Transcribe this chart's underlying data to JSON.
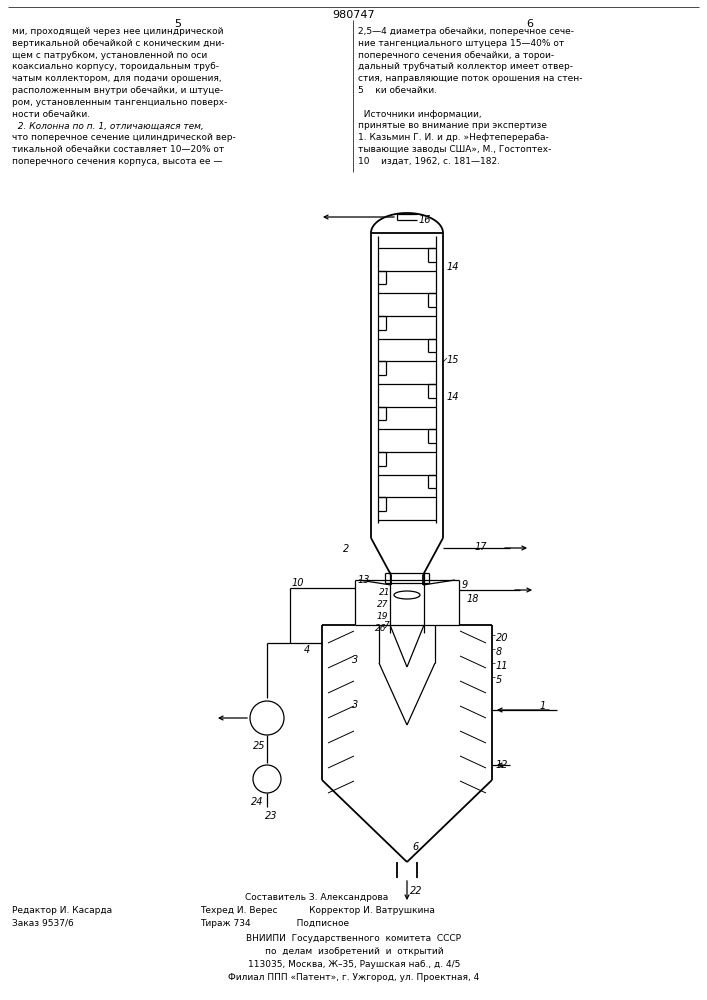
{
  "bg_color": "#ffffff",
  "lc": "#000000",
  "fig_width": 7.07,
  "fig_height": 10.0,
  "dpi": 100,
  "patent_num": "980747",
  "page_left": "5",
  "page_right": "6",
  "header_left": [
    "ми, проходящей через нее цилиндрической",
    "вертикальной обечайкой с коническим дни-",
    "щем с патрубком, установленной по оси",
    "коаксиально корпусу, тороидальным труб-",
    "чатым коллектором, для подачи орошения,",
    "расположенным внутри обечайки, и штуце-",
    "ром, установленным тангенциально поверх-",
    "ности обечайки.",
    "  2. Колонна по п. 1, отличающаяся тем,",
    "что поперечное сечение цилиндрической вер-",
    "тикальной обечайки составляет 10—20% от",
    "поперечного сечения корпуса, высота ее —"
  ],
  "header_right": [
    "2,5—4 диаметра обечайки, поперечное сече-",
    "ние тангенциального штуцера 15—40% от",
    "поперечного сечения обечайки, а торои-",
    "дальный трубчатый коллектор имеет отвер-",
    "стия, направляющие поток орошения на стен-",
    "5    ки обечайки.",
    "",
    "  Источники информации,",
    "принятые во внимание при экспертизе",
    "1. Казьмин Г. И. и др. »Нефтеперераба-",
    "тывающие заводы США», М., Гостоптех-",
    "10    издат, 1962, с. 181—182."
  ],
  "footer_left1": "Редактор И. Касарда",
  "footer_left2": "Заказ 9537/6",
  "footer_c1": "Составитель З. Александрова",
  "footer_c2": "Техред И. Верес           Корректор И. Ватрушкина",
  "footer_c3": "Тираж 734                Подписное",
  "footer_org1": "ВНИИПИ  Государственного  комитета  СССР",
  "footer_org2": "по  делам  изобретений  и  открытий",
  "footer_org3": "113035, Москва, Ж–35, Раушская наб., д. 4/5",
  "footer_org4": "Филиал ППП «Патент», г. Ужгород, ул. Проектная, 4"
}
